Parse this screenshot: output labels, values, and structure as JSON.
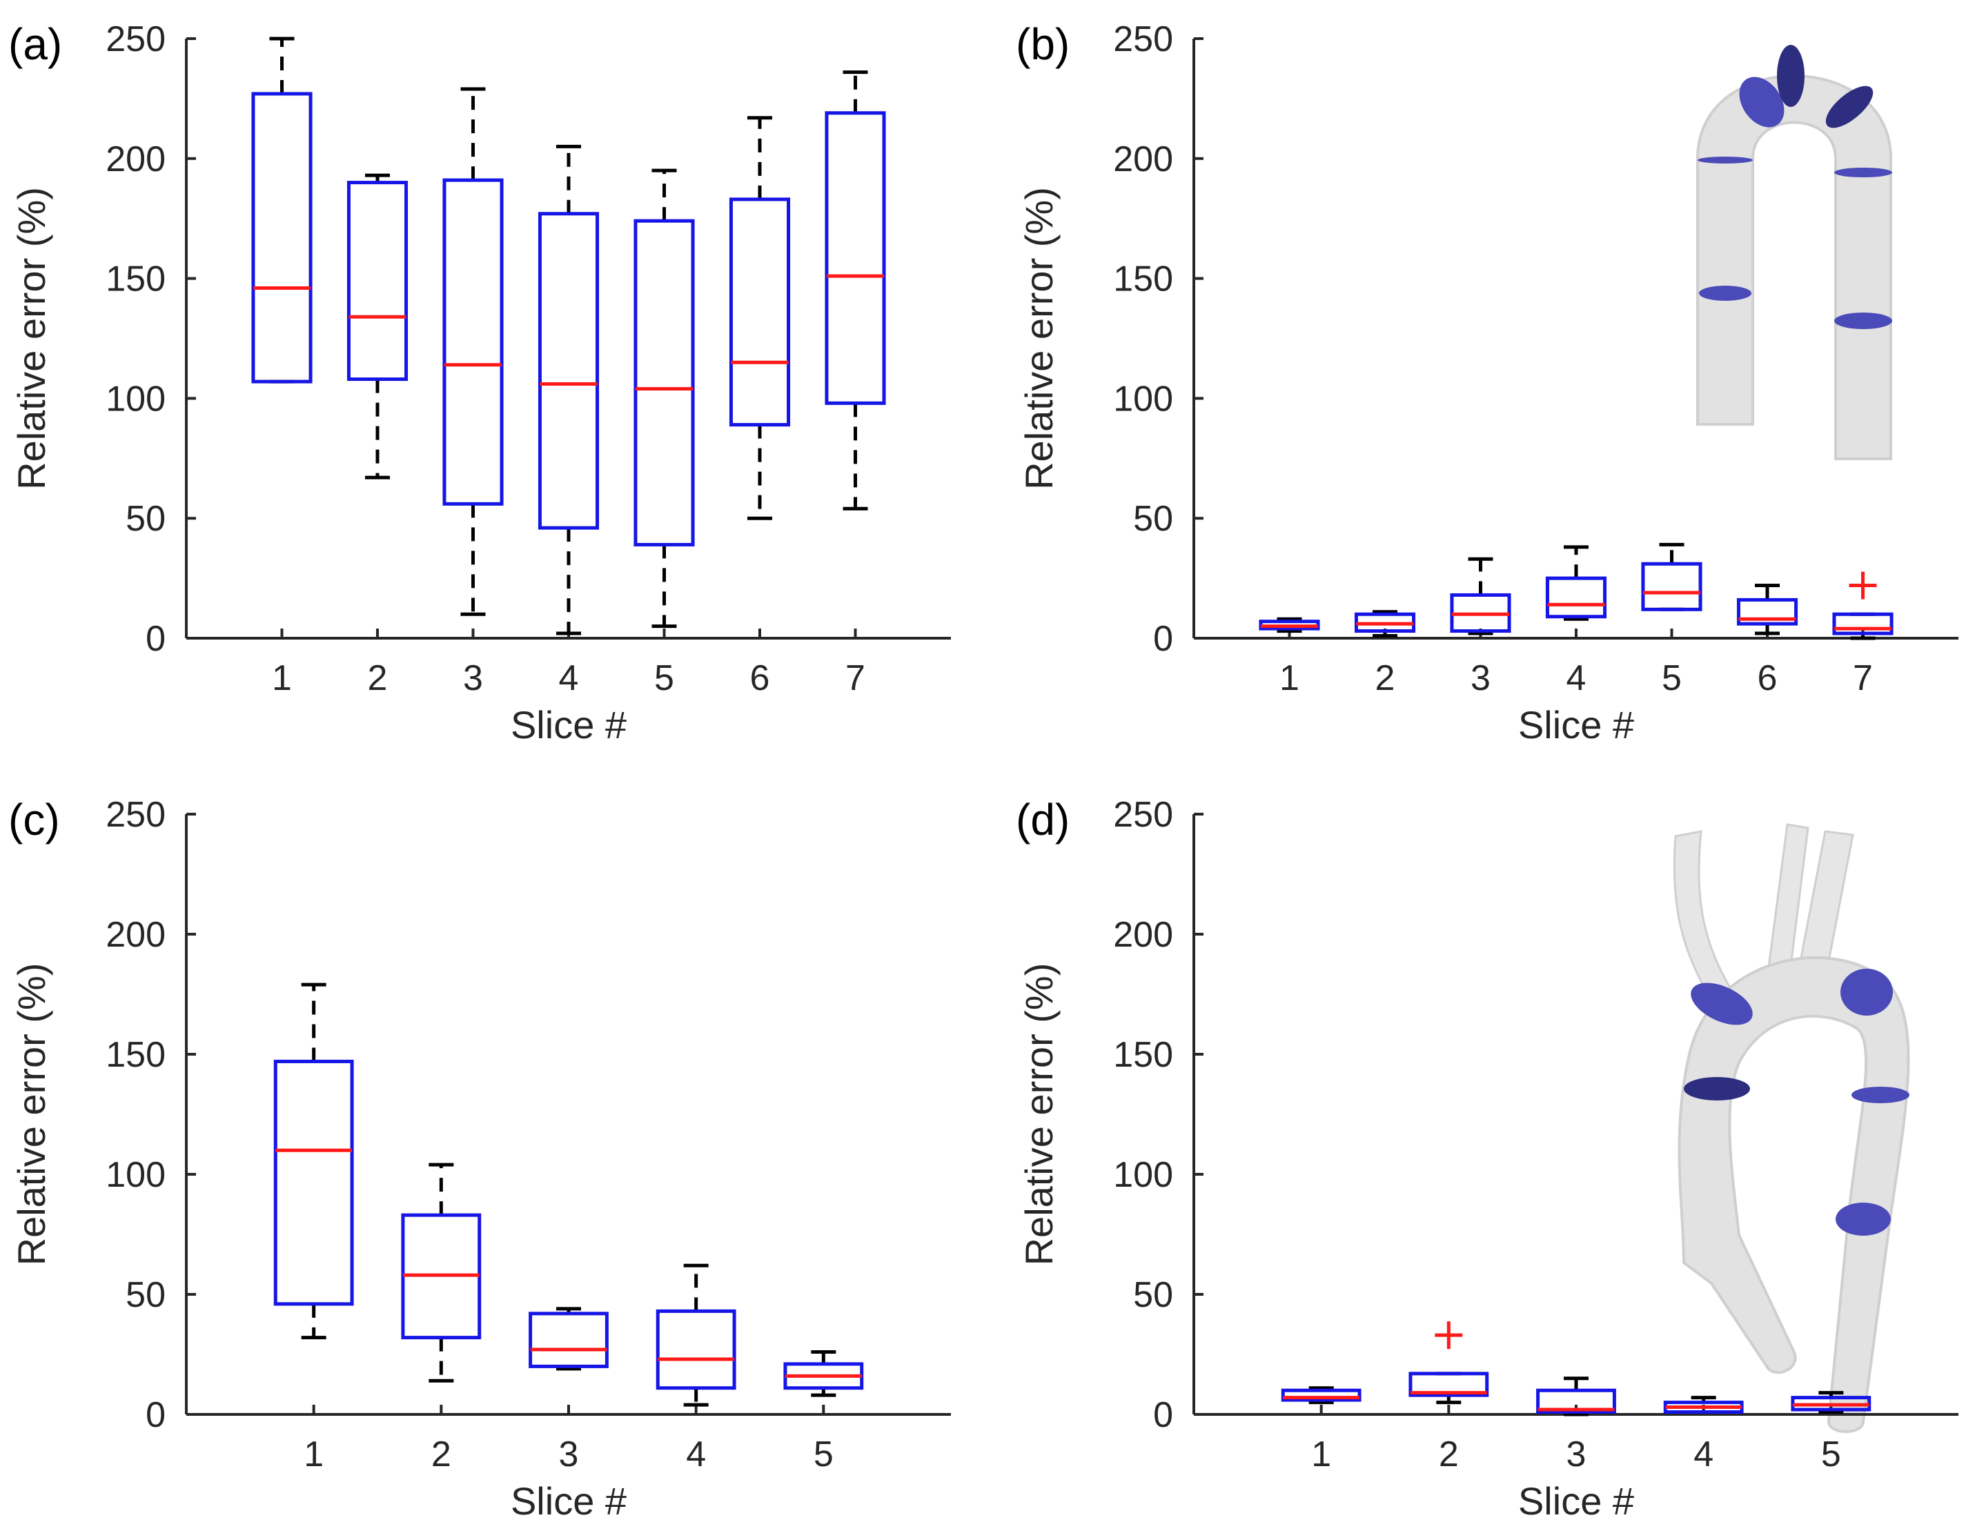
{
  "colors": {
    "box": "#1515e6",
    "median": "#ff1a1a",
    "whisker": "#000000",
    "outlier": "#ff1a1a",
    "axis": "#262626",
    "vessel": "#d9d9d9",
    "slice": "#3a3aa8"
  },
  "chart_data": [
    {
      "type": "boxplot",
      "panel_label": "(a)",
      "xlabel": "Slice #",
      "ylabel": "Relative error (%)",
      "ylim": [
        0,
        250
      ],
      "yticks": [
        0,
        50,
        100,
        150,
        200,
        250
      ],
      "categories": [
        "1",
        "2",
        "3",
        "4",
        "5",
        "6",
        "7"
      ],
      "boxes": [
        {
          "min": 107,
          "q1": 107,
          "median": 146,
          "q3": 227,
          "max": 250,
          "outliers": []
        },
        {
          "min": 67,
          "q1": 108,
          "median": 134,
          "q3": 190,
          "max": 193,
          "outliers": []
        },
        {
          "min": 10,
          "q1": 56,
          "median": 114,
          "q3": 191,
          "max": 229,
          "outliers": []
        },
        {
          "min": 2,
          "q1": 46,
          "median": 106,
          "q3": 177,
          "max": 205,
          "outliers": []
        },
        {
          "min": 5,
          "q1": 39,
          "median": 104,
          "q3": 174,
          "max": 195,
          "outliers": []
        },
        {
          "min": 50,
          "q1": 89,
          "median": 115,
          "q3": 183,
          "max": 217,
          "outliers": []
        },
        {
          "min": 54,
          "q1": 98,
          "median": 151,
          "q3": 219,
          "max": 236,
          "outliers": []
        }
      ]
    },
    {
      "type": "boxplot",
      "panel_label": "(b)",
      "xlabel": "Slice #",
      "ylabel": "Relative error (%)",
      "ylim": [
        0,
        250
      ],
      "yticks": [
        0,
        50,
        100,
        150,
        200,
        250
      ],
      "categories": [
        "1",
        "2",
        "3",
        "4",
        "5",
        "6",
        "7"
      ],
      "inset": "straight-arch-vessel",
      "boxes": [
        {
          "min": 3,
          "q1": 4,
          "median": 5,
          "q3": 7,
          "max": 8,
          "outliers": []
        },
        {
          "min": 1,
          "q1": 3,
          "median": 6,
          "q3": 10,
          "max": 11,
          "outliers": []
        },
        {
          "min": 2,
          "q1": 3,
          "median": 10,
          "q3": 18,
          "max": 33,
          "outliers": []
        },
        {
          "min": 8,
          "q1": 9,
          "median": 14,
          "q3": 25,
          "max": 38,
          "outliers": []
        },
        {
          "min": 12,
          "q1": 12,
          "median": 19,
          "q3": 31,
          "max": 39,
          "outliers": []
        },
        {
          "min": 2,
          "q1": 6,
          "median": 8,
          "q3": 16,
          "max": 22,
          "outliers": []
        },
        {
          "min": 0,
          "q1": 2,
          "median": 4,
          "q3": 10,
          "max": 10,
          "outliers": [
            22
          ]
        }
      ]
    },
    {
      "type": "boxplot",
      "panel_label": "(c)",
      "xlabel": "Slice #",
      "ylabel": "Relative error (%)",
      "ylim": [
        0,
        250
      ],
      "yticks": [
        0,
        50,
        100,
        150,
        200,
        250
      ],
      "categories": [
        "1",
        "2",
        "3",
        "4",
        "5"
      ],
      "boxes": [
        {
          "min": 32,
          "q1": 46,
          "median": 110,
          "q3": 147,
          "max": 179,
          "outliers": []
        },
        {
          "min": 14,
          "q1": 32,
          "median": 58,
          "q3": 83,
          "max": 104,
          "outliers": []
        },
        {
          "min": 19,
          "q1": 20,
          "median": 27,
          "q3": 42,
          "max": 44,
          "outliers": []
        },
        {
          "min": 4,
          "q1": 11,
          "median": 23,
          "q3": 43,
          "max": 62,
          "outliers": []
        },
        {
          "min": 8,
          "q1": 11,
          "median": 16,
          "q3": 21,
          "max": 26,
          "outliers": []
        }
      ]
    },
    {
      "type": "boxplot",
      "panel_label": "(d)",
      "xlabel": "Slice #",
      "ylabel": "Relative error (%)",
      "ylim": [
        0,
        250
      ],
      "yticks": [
        0,
        50,
        100,
        150,
        200,
        250
      ],
      "categories": [
        "1",
        "2",
        "3",
        "4",
        "5"
      ],
      "inset": "aortic-arch-vessel",
      "boxes": [
        {
          "min": 5,
          "q1": 6,
          "median": 7,
          "q3": 10,
          "max": 11,
          "outliers": []
        },
        {
          "min": 5,
          "q1": 8,
          "median": 9,
          "q3": 17,
          "max": 17,
          "outliers": [
            33
          ]
        },
        {
          "min": 0,
          "q1": 1,
          "median": 2,
          "q3": 10,
          "max": 15,
          "outliers": []
        },
        {
          "min": 1,
          "q1": 1,
          "median": 3,
          "q3": 5,
          "max": 7,
          "outliers": []
        },
        {
          "min": 1,
          "q1": 2,
          "median": 4,
          "q3": 7,
          "max": 9,
          "outliers": []
        }
      ]
    }
  ]
}
